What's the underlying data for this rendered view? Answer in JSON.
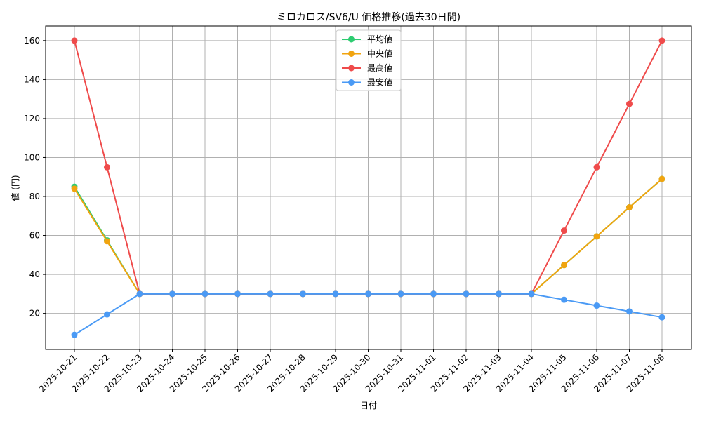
{
  "chart_data": {
    "type": "line",
    "title": "ミロカロス/SV6/U 価格推移(過去30日間)",
    "xlabel": "日付",
    "ylabel": "値 (円)",
    "categories": [
      "2025-10-21",
      "2025-10-22",
      "2025-10-23",
      "2025-10-24",
      "2025-10-25",
      "2025-10-26",
      "2025-10-27",
      "2025-10-28",
      "2025-10-29",
      "2025-10-30",
      "2025-10-31",
      "2025-11-01",
      "2025-11-02",
      "2025-11-03",
      "2025-11-04",
      "2025-11-05",
      "2025-11-06",
      "2025-11-07",
      "2025-11-08"
    ],
    "ylim": [
      1.5,
      167.5
    ],
    "yticks": [
      20,
      40,
      60,
      80,
      100,
      120,
      140,
      160
    ],
    "grid": true,
    "legend_position": "top-center",
    "series": [
      {
        "name": "平均値",
        "color": "#2ecc71",
        "values": [
          85,
          57.5,
          30,
          30,
          30,
          30,
          30,
          30,
          30,
          30,
          30,
          30,
          30,
          30,
          30,
          44.8,
          59.5,
          74.4,
          89
        ]
      },
      {
        "name": "中央値",
        "color": "#f1a40f",
        "values": [
          84,
          57,
          30,
          30,
          30,
          30,
          30,
          30,
          30,
          30,
          30,
          30,
          30,
          30,
          30,
          44.8,
          59.5,
          74.4,
          89
        ]
      },
      {
        "name": "最高値",
        "color": "#ef4b4b",
        "values": [
          160,
          95,
          30,
          30,
          30,
          30,
          30,
          30,
          30,
          30,
          30,
          30,
          30,
          30,
          30,
          62.5,
          95,
          127.5,
          160
        ]
      },
      {
        "name": "最安値",
        "color": "#4a9af5",
        "values": [
          9,
          19.5,
          30,
          30,
          30,
          30,
          30,
          30,
          30,
          30,
          30,
          30,
          30,
          30,
          30,
          27,
          24,
          21,
          18
        ]
      }
    ]
  }
}
